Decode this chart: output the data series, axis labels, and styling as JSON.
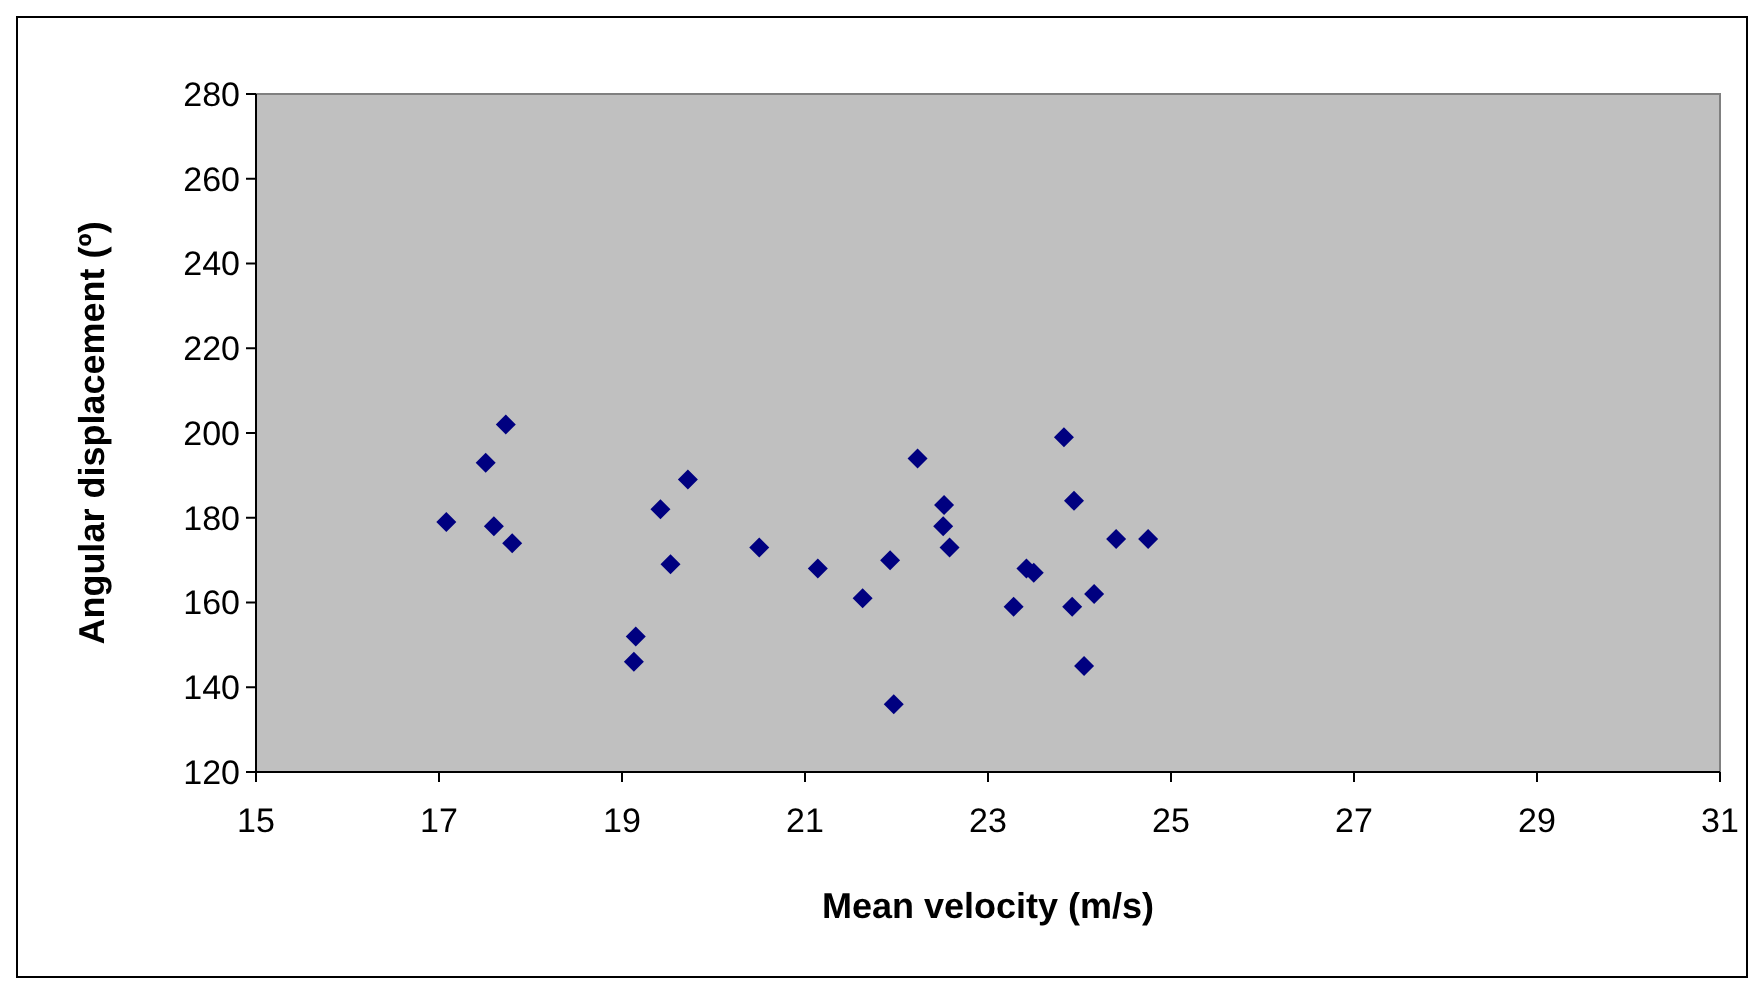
{
  "chart_data": {
    "type": "scatter",
    "xlabel": "Mean velocity (m/s)",
    "ylabel": "Angular displacement (º)",
    "x": [
      17.08,
      17.51,
      17.73,
      17.6,
      17.8,
      19.15,
      19.13,
      19.42,
      19.53,
      19.72,
      20.5,
      21.14,
      21.63,
      21.93,
      21.97,
      22.23,
      22.52,
      22.51,
      22.58,
      23.83,
      23.94,
      24.4,
      24.75,
      23.42,
      23.5,
      23.28,
      23.92,
      24.16,
      24.05
    ],
    "series": [
      {
        "color": "#000080",
        "values": [
          179,
          193,
          202,
          178,
          174,
          152,
          146,
          182,
          169,
          189,
          173,
          168,
          161,
          170,
          136,
          194,
          183,
          178,
          173,
          199,
          184,
          175,
          175,
          168,
          167,
          159,
          159,
          162,
          145
        ]
      }
    ],
    "xlim": [
      15,
      31
    ],
    "xticks": [
      15,
      17,
      19,
      21,
      23,
      25,
      27,
      29,
      31
    ],
    "ylim": [
      120,
      280
    ],
    "yticks": [
      120,
      140,
      160,
      180,
      200,
      220,
      240,
      260,
      280
    ],
    "grid": false,
    "marker": "diamond"
  }
}
